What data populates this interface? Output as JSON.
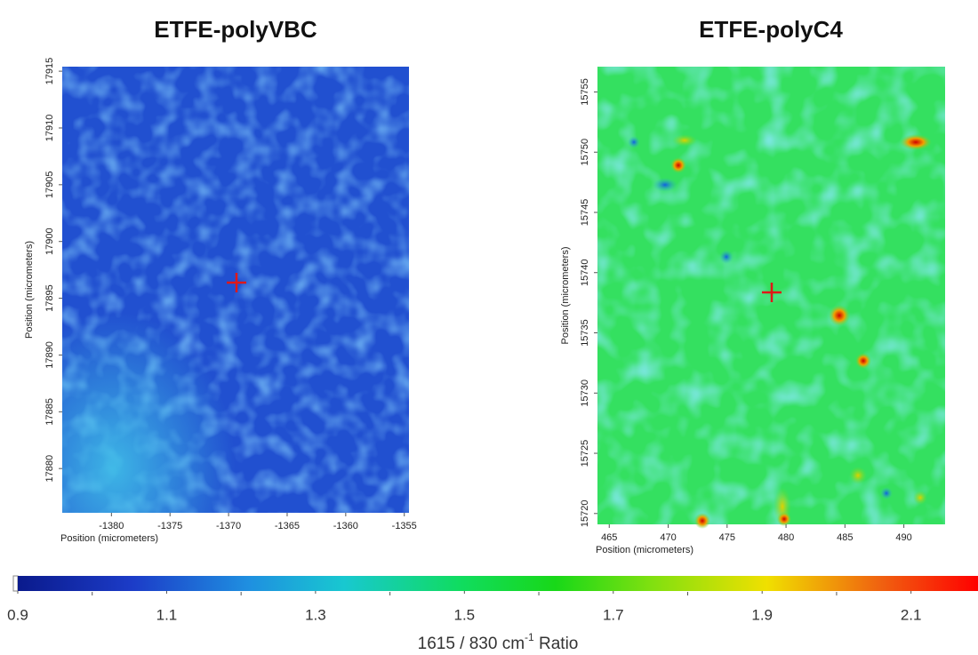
{
  "chart_data": [
    {
      "type": "heatmap",
      "title": "ETFE-polyVBC",
      "xlabel": "Position (micrometers)",
      "ylabel": "Position (micrometers)",
      "xlim": [
        -1384.2,
        -1354.6
      ],
      "ylim": [
        17876.1,
        17915.4
      ],
      "xticks": [
        -1380,
        -1375,
        -1370,
        -1365,
        -1360,
        -1355
      ],
      "yticks": [
        17880,
        17885,
        17890,
        17895,
        17900,
        17905,
        17910,
        17915
      ]
    },
    {
      "type": "heatmap",
      "title": "ETFE-polyC4",
      "xlabel": "Position (micrometers)",
      "ylabel": "Position (micrometers)",
      "xlim": [
        464.0,
        493.5
      ],
      "ylim": [
        15719.1,
        15757.1
      ],
      "xticks": [
        465,
        470,
        475,
        480,
        485,
        490
      ],
      "yticks": [
        15720,
        15725,
        15730,
        15735,
        15740,
        15745,
        15750,
        15755
      ]
    },
    {
      "type": "colorbar",
      "xlabel": "1615 / 830 cm",
      "xlabel_sup": "-1",
      "xlabel_end": " Ratio",
      "xlim": [
        0.9,
        2.19
      ],
      "xticks": [
        0.9,
        1.1,
        1.3,
        1.5,
        1.7,
        1.9,
        2.1
      ],
      "minor_xticks": [
        1.0,
        1.2,
        1.4,
        1.6,
        1.8,
        2.0
      ]
    }
  ]
}
